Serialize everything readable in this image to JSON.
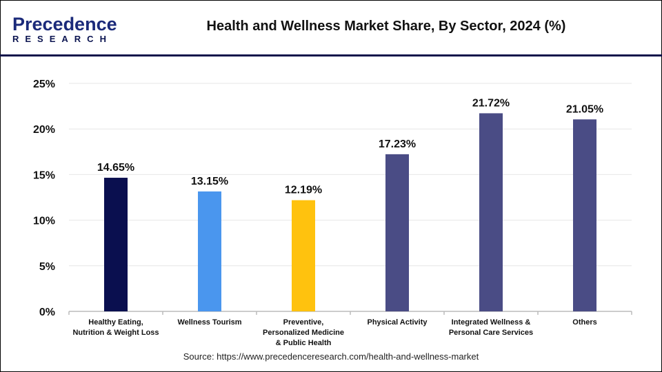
{
  "logo": {
    "line1": "Precedence",
    "line2": "RESEARCH"
  },
  "title": "Health and Wellness Market Share, By Sector, 2024 (%)",
  "source": "Source: https://www.precedenceresearch.com/health-and-wellness-market",
  "chart_data": {
    "type": "bar",
    "title": "Health and Wellness Market Share, By Sector, 2024 (%)",
    "categories": [
      [
        "Healthy Eating,",
        "Nutrition & Weight Loss"
      ],
      [
        "Wellness Tourism"
      ],
      [
        "Preventive,",
        "Personalized Medicine",
        "& Public Health"
      ],
      [
        "Physical Activity"
      ],
      [
        "Integrated Wellness &",
        "Personal Care Services"
      ],
      [
        "Others"
      ]
    ],
    "values": [
      14.65,
      13.15,
      12.19,
      17.23,
      21.72,
      21.05
    ],
    "data_labels": [
      "14.65%",
      "13.15%",
      "12.19%",
      "17.23%",
      "21.72%",
      "21.05%"
    ],
    "colors": [
      "#0a0f4f",
      "#4a96ee",
      "#ffc20e",
      "#4a4c85",
      "#4a4c85",
      "#4a4c85"
    ],
    "ylim": [
      0,
      25
    ],
    "yticks": [
      0,
      5,
      10,
      15,
      20,
      25
    ],
    "ytick_labels": [
      "0%",
      "5%",
      "10%",
      "15%",
      "20%",
      "25%"
    ],
    "grid": true,
    "legend": "none"
  }
}
